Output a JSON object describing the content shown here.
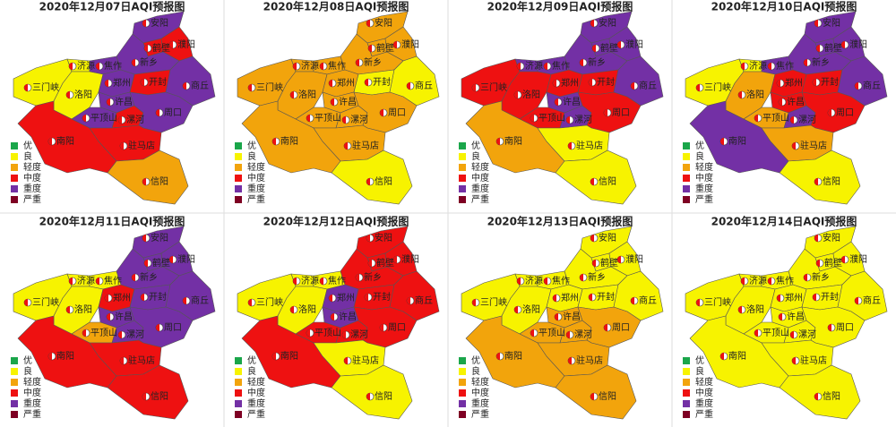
{
  "cities": [
    "安阳",
    "鹤壁",
    "濮阳",
    "济源",
    "焦作",
    "新乡",
    "三门峡",
    "洛阳",
    "郑州",
    "开封",
    "商丘",
    "许昌",
    "平顶山",
    "漯河",
    "周口",
    "南阳",
    "驻马店",
    "信阳"
  ],
  "legend": [
    {
      "label": "优",
      "color": "#1aa64a"
    },
    {
      "label": "良",
      "color": "#f7f300"
    },
    {
      "label": "轻度",
      "color": "#f2a40c"
    },
    {
      "label": "中度",
      "color": "#ee1111"
    },
    {
      "label": "重度",
      "color": "#7330a5"
    },
    {
      "label": "严重",
      "color": "#7e0023"
    }
  ],
  "panels": [
    {
      "title": "2020年12月07日AQI预报图",
      "colors": [
        "#7330a5",
        "#ee1111",
        "#ee1111",
        "#f7f300",
        "#7330a5",
        "#7330a5",
        "#f7f300",
        "#f7f300",
        "#7330a5",
        "#ee1111",
        "#7330a5",
        "#7330a5",
        "#7330a5",
        "#ee1111",
        "#7330a5",
        "#ee1111",
        "#ee1111",
        "#f2a40c"
      ]
    },
    {
      "title": "2020年12月08日AQI预报图",
      "colors": [
        "#f2a40c",
        "#f2a40c",
        "#f2a40c",
        "#f2a40c",
        "#f2a40c",
        "#f2a40c",
        "#f2a40c",
        "#f2a40c",
        "#f2a40c",
        "#f7f300",
        "#f7f300",
        "#f2a40c",
        "#f2a40c",
        "#f2a40c",
        "#f2a40c",
        "#f2a40c",
        "#f2a40c",
        "#f7f300"
      ]
    },
    {
      "title": "2020年12月09日AQI预报图",
      "colors": [
        "#7330a5",
        "#7330a5",
        "#7330a5",
        "#7330a5",
        "#7330a5",
        "#7330a5",
        "#ee1111",
        "#ee1111",
        "#ee1111",
        "#ee1111",
        "#7330a5",
        "#7330a5",
        "#ee1111",
        "#7330a5",
        "#ee1111",
        "#f2a40c",
        "#f7f300",
        "#f7f300"
      ]
    },
    {
      "title": "2020年12月10日AQI预报图",
      "colors": [
        "#7330a5",
        "#7330a5",
        "#7330a5",
        "#f7f300",
        "#7330a5",
        "#7330a5",
        "#f7f300",
        "#f2a40c",
        "#ee1111",
        "#ee1111",
        "#7330a5",
        "#ee1111",
        "#f2a40c",
        "#7330a5",
        "#ee1111",
        "#7330a5",
        "#f2a40c",
        "#f7f300"
      ]
    },
    {
      "title": "2020年12月11日AQI预报图",
      "colors": [
        "#7330a5",
        "#7330a5",
        "#7330a5",
        "#f7f300",
        "#f7f300",
        "#7330a5",
        "#f7f300",
        "#f7f300",
        "#ee1111",
        "#7330a5",
        "#7330a5",
        "#7330a5",
        "#f2a40c",
        "#7330a5",
        "#7330a5",
        "#ee1111",
        "#ee1111",
        "#ee1111"
      ]
    },
    {
      "title": "2020年12月12日AQI预报图",
      "colors": [
        "#ee1111",
        "#ee1111",
        "#ee1111",
        "#f7f300",
        "#f7f300",
        "#ee1111",
        "#f7f300",
        "#f7f300",
        "#7330a5",
        "#ee1111",
        "#ee1111",
        "#7330a5",
        "#ee1111",
        "#ee1111",
        "#ee1111",
        "#ee1111",
        "#f7f300",
        "#f7f300"
      ]
    },
    {
      "title": "2020年12月13日AQI预报图",
      "colors": [
        "#f7f300",
        "#f7f300",
        "#f7f300",
        "#f7f300",
        "#f7f300",
        "#f7f300",
        "#f7f300",
        "#f7f300",
        "#f7f300",
        "#f7f300",
        "#f7f300",
        "#f2a40c",
        "#f2a40c",
        "#f2a40c",
        "#f2a40c",
        "#f2a40c",
        "#f2a40c",
        "#f2a40c"
      ]
    },
    {
      "title": "2020年12月14日AQI预报图",
      "colors": [
        "#f7f300",
        "#f7f300",
        "#f7f300",
        "#f7f300",
        "#f7f300",
        "#f7f300",
        "#f7f300",
        "#f7f300",
        "#f7f300",
        "#f7f300",
        "#f7f300",
        "#f7f300",
        "#f7f300",
        "#f7f300",
        "#f7f300",
        "#f7f300",
        "#f7f300",
        "#f7f300"
      ]
    }
  ]
}
